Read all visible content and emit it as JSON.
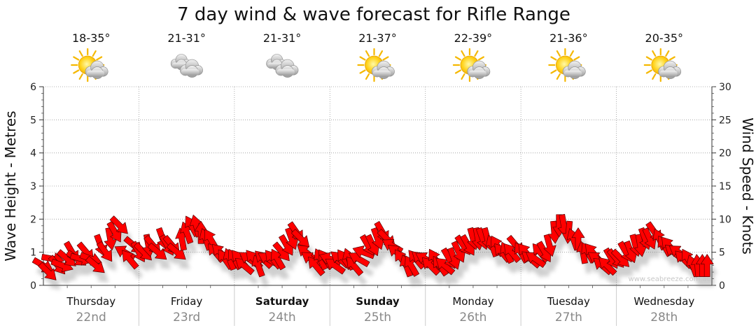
{
  "chart_data": {
    "type": "line",
    "title": "7 day wind & wave forecast for Rifle Range",
    "ylabel_left": "Wave Height - Metres",
    "ylabel_right": "Wind Speed - Knots",
    "yticks_left": [
      "0",
      "1",
      "2",
      "3",
      "4",
      "5",
      "6"
    ],
    "yticks_right": [
      "0",
      "5",
      "10",
      "15",
      "20",
      "25",
      "30"
    ],
    "ylim_left": [
      0,
      6
    ],
    "ylim_right": [
      0,
      30
    ],
    "watermark": "www.seabreeze.com.au",
    "arrow_color": "#ff0000",
    "grid": true,
    "days": [
      {
        "day": "Thursday",
        "date": "22nd",
        "bold": false,
        "temp": "18-35°",
        "weather_icon": "sun-cloud-icon"
      },
      {
        "day": "Friday",
        "date": "23rd",
        "bold": false,
        "temp": "21-31°",
        "weather_icon": "cloud-icon"
      },
      {
        "day": "Saturday",
        "date": "24th",
        "bold": true,
        "temp": "21-31°",
        "weather_icon": "cloud-icon"
      },
      {
        "day": "Sunday",
        "date": "25th",
        "bold": true,
        "temp": "21-37°",
        "weather_icon": "sun-cloud-icon"
      },
      {
        "day": "Monday",
        "date": "26th",
        "bold": false,
        "temp": "22-39°",
        "weather_icon": "sun-cloud-icon"
      },
      {
        "day": "Tuesday",
        "date": "27th",
        "bold": false,
        "temp": "21-36°",
        "weather_icon": "sun-cloud-icon"
      },
      {
        "day": "Wednesday",
        "date": "28th",
        "bold": false,
        "temp": "20-35°",
        "weather_icon": "sun-cloud-icon"
      }
    ],
    "series": [
      {
        "name": "Wind",
        "units": "knots",
        "x_day": [
          0.0,
          0.05,
          0.1,
          0.15,
          0.2,
          0.25,
          0.3,
          0.35,
          0.4,
          0.45,
          0.5,
          0.55,
          0.6,
          0.65,
          0.7,
          0.75,
          0.8,
          0.85,
          0.9,
          0.95,
          1.0,
          1.05,
          1.1,
          1.15,
          1.2,
          1.25,
          1.3,
          1.35,
          1.4,
          1.45,
          1.5,
          1.55,
          1.6,
          1.65,
          1.7,
          1.75,
          1.8,
          1.85,
          1.9,
          1.95,
          2.0,
          2.05,
          2.1,
          2.15,
          2.2,
          2.25,
          2.3,
          2.35,
          2.4,
          2.45,
          2.5,
          2.55,
          2.6,
          2.65,
          2.7,
          2.75,
          2.8,
          2.85,
          2.9,
          2.95,
          3.0,
          3.05,
          3.1,
          3.15,
          3.2,
          3.25,
          3.3,
          3.35,
          3.4,
          3.45,
          3.5,
          3.55,
          3.6,
          3.65,
          3.7,
          3.75,
          3.8,
          3.85,
          3.9,
          3.95,
          4.0,
          4.05,
          4.1,
          4.15,
          4.2,
          4.25,
          4.3,
          4.35,
          4.4,
          4.45,
          4.5,
          4.55,
          4.6,
          4.65,
          4.7,
          4.75,
          4.8,
          4.85,
          4.9,
          4.95,
          5.0,
          5.05,
          5.1,
          5.15,
          5.2,
          5.25,
          5.3,
          5.35,
          5.4,
          5.45,
          5.5,
          5.55,
          5.6,
          5.65,
          5.7,
          5.75,
          5.8,
          5.85,
          5.9,
          5.95,
          6.0,
          6.05,
          6.1,
          6.15,
          6.2,
          6.25,
          6.3,
          6.35,
          6.4,
          6.45,
          6.5,
          6.55,
          6.6,
          6.65,
          6.7,
          6.75,
          6.8,
          6.85,
          6.9,
          6.95
        ],
        "values": [
          3,
          2,
          4,
          3,
          3,
          4,
          5,
          4,
          4,
          5,
          4,
          3,
          6,
          5,
          7,
          8,
          9,
          5,
          4,
          6,
          5,
          5,
          6,
          6,
          5,
          7,
          6,
          6,
          5,
          7,
          8,
          9,
          9,
          8,
          7,
          7,
          5,
          5,
          4,
          4,
          4,
          4,
          3,
          4,
          4,
          3,
          4,
          4,
          4,
          4,
          5,
          6,
          7,
          8,
          7,
          5,
          4,
          3,
          4,
          4,
          4,
          3,
          4,
          4,
          4,
          3,
          4,
          5,
          6,
          6,
          7,
          8,
          7,
          6,
          5,
          4,
          3,
          3,
          4,
          4,
          4,
          3,
          4,
          3,
          3,
          4,
          4,
          5,
          6,
          6,
          7,
          7,
          7,
          7,
          6,
          6,
          5,
          5,
          5,
          6,
          5,
          5,
          4,
          4,
          5,
          5,
          6,
          8,
          9,
          9,
          8,
          7,
          7,
          5,
          5,
          5,
          4,
          3,
          3,
          4,
          4,
          4,
          5,
          5,
          6,
          6,
          7,
          7,
          8,
          7,
          6,
          6,
          5,
          5,
          4,
          4,
          3,
          3,
          3,
          3
        ],
        "direction_deg": [
          30,
          45,
          10,
          50,
          20,
          40,
          60,
          35,
          15,
          50,
          20,
          40,
          70,
          55,
          80,
          60,
          45,
          210,
          230,
          40,
          60,
          45,
          80,
          50,
          40,
          70,
          60,
          50,
          40,
          260,
          250,
          240,
          255,
          270,
          250,
          240,
          230,
          225,
          235,
          250,
          240,
          230,
          220,
          215,
          230,
          250,
          225,
          210,
          230,
          240,
          50,
          60,
          70,
          55,
          45,
          220,
          215,
          230,
          245,
          235,
          200,
          215,
          220,
          235,
          250,
          230,
          210,
          200,
          60,
          65,
          70,
          60,
          45,
          210,
          220,
          235,
          250,
          240,
          230,
          220,
          210,
          225,
          240,
          235,
          220,
          60,
          70,
          65,
          55,
          60,
          75,
          80,
          70,
          75,
          250,
          240,
          230,
          245,
          230,
          50,
          240,
          230,
          220,
          215,
          230,
          60,
          75,
          85,
          90,
          80,
          95,
          250,
          270,
          260,
          240,
          230,
          215,
          220,
          225,
          60,
          50,
          45,
          60,
          70,
          75,
          80,
          70,
          65,
          55,
          245,
          240,
          230,
          220,
          215,
          225,
          240,
          250,
          265,
          270,
          270
        ]
      }
    ]
  }
}
